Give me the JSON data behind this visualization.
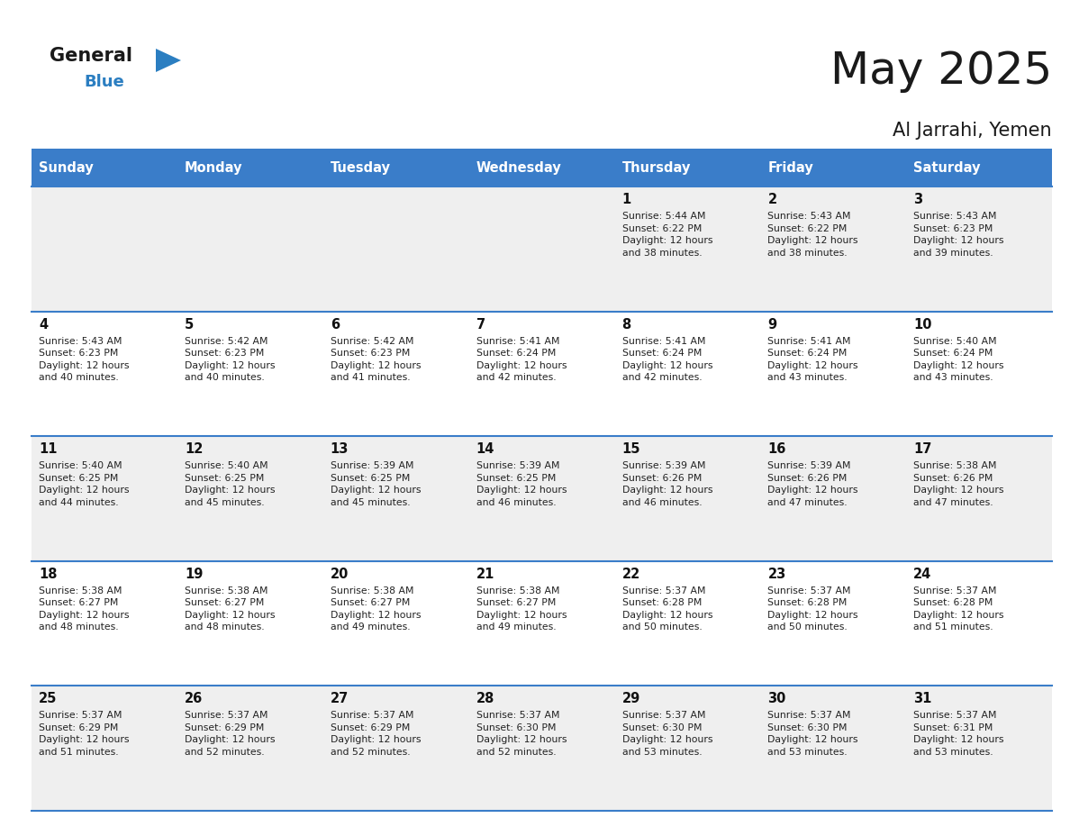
{
  "title": "May 2025",
  "location": "Al Jarrahi, Yemen",
  "header_color": "#3A7DC9",
  "header_text_color": "#FFFFFF",
  "day_names": [
    "Sunday",
    "Monday",
    "Tuesday",
    "Wednesday",
    "Thursday",
    "Friday",
    "Saturday"
  ],
  "alt_row_color": "#EFEFEF",
  "white_color": "#FFFFFF",
  "cell_border_color": "#3A7DC9",
  "text_color": "#222222",
  "day_num_color": "#111111",
  "logo_general_color": "#1A1A1A",
  "logo_blue_color": "#2B7EC1",
  "calendar": [
    [
      null,
      null,
      null,
      null,
      {
        "day": 1,
        "sunrise": "5:44 AM",
        "sunset": "6:22 PM",
        "daylight": "12 hours and 38 minutes."
      },
      {
        "day": 2,
        "sunrise": "5:43 AM",
        "sunset": "6:22 PM",
        "daylight": "12 hours and 38 minutes."
      },
      {
        "day": 3,
        "sunrise": "5:43 AM",
        "sunset": "6:23 PM",
        "daylight": "12 hours and 39 minutes."
      }
    ],
    [
      {
        "day": 4,
        "sunrise": "5:43 AM",
        "sunset": "6:23 PM",
        "daylight": "12 hours and 40 minutes."
      },
      {
        "day": 5,
        "sunrise": "5:42 AM",
        "sunset": "6:23 PM",
        "daylight": "12 hours and 40 minutes."
      },
      {
        "day": 6,
        "sunrise": "5:42 AM",
        "sunset": "6:23 PM",
        "daylight": "12 hours and 41 minutes."
      },
      {
        "day": 7,
        "sunrise": "5:41 AM",
        "sunset": "6:24 PM",
        "daylight": "12 hours and 42 minutes."
      },
      {
        "day": 8,
        "sunrise": "5:41 AM",
        "sunset": "6:24 PM",
        "daylight": "12 hours and 42 minutes."
      },
      {
        "day": 9,
        "sunrise": "5:41 AM",
        "sunset": "6:24 PM",
        "daylight": "12 hours and 43 minutes."
      },
      {
        "day": 10,
        "sunrise": "5:40 AM",
        "sunset": "6:24 PM",
        "daylight": "12 hours and 43 minutes."
      }
    ],
    [
      {
        "day": 11,
        "sunrise": "5:40 AM",
        "sunset": "6:25 PM",
        "daylight": "12 hours and 44 minutes."
      },
      {
        "day": 12,
        "sunrise": "5:40 AM",
        "sunset": "6:25 PM",
        "daylight": "12 hours and 45 minutes."
      },
      {
        "day": 13,
        "sunrise": "5:39 AM",
        "sunset": "6:25 PM",
        "daylight": "12 hours and 45 minutes."
      },
      {
        "day": 14,
        "sunrise": "5:39 AM",
        "sunset": "6:25 PM",
        "daylight": "12 hours and 46 minutes."
      },
      {
        "day": 15,
        "sunrise": "5:39 AM",
        "sunset": "6:26 PM",
        "daylight": "12 hours and 46 minutes."
      },
      {
        "day": 16,
        "sunrise": "5:39 AM",
        "sunset": "6:26 PM",
        "daylight": "12 hours and 47 minutes."
      },
      {
        "day": 17,
        "sunrise": "5:38 AM",
        "sunset": "6:26 PM",
        "daylight": "12 hours and 47 minutes."
      }
    ],
    [
      {
        "day": 18,
        "sunrise": "5:38 AM",
        "sunset": "6:27 PM",
        "daylight": "12 hours and 48 minutes."
      },
      {
        "day": 19,
        "sunrise": "5:38 AM",
        "sunset": "6:27 PM",
        "daylight": "12 hours and 48 minutes."
      },
      {
        "day": 20,
        "sunrise": "5:38 AM",
        "sunset": "6:27 PM",
        "daylight": "12 hours and 49 minutes."
      },
      {
        "day": 21,
        "sunrise": "5:38 AM",
        "sunset": "6:27 PM",
        "daylight": "12 hours and 49 minutes."
      },
      {
        "day": 22,
        "sunrise": "5:37 AM",
        "sunset": "6:28 PM",
        "daylight": "12 hours and 50 minutes."
      },
      {
        "day": 23,
        "sunrise": "5:37 AM",
        "sunset": "6:28 PM",
        "daylight": "12 hours and 50 minutes."
      },
      {
        "day": 24,
        "sunrise": "5:37 AM",
        "sunset": "6:28 PM",
        "daylight": "12 hours and 51 minutes."
      }
    ],
    [
      {
        "day": 25,
        "sunrise": "5:37 AM",
        "sunset": "6:29 PM",
        "daylight": "12 hours and 51 minutes."
      },
      {
        "day": 26,
        "sunrise": "5:37 AM",
        "sunset": "6:29 PM",
        "daylight": "12 hours and 52 minutes."
      },
      {
        "day": 27,
        "sunrise": "5:37 AM",
        "sunset": "6:29 PM",
        "daylight": "12 hours and 52 minutes."
      },
      {
        "day": 28,
        "sunrise": "5:37 AM",
        "sunset": "6:30 PM",
        "daylight": "12 hours and 52 minutes."
      },
      {
        "day": 29,
        "sunrise": "5:37 AM",
        "sunset": "6:30 PM",
        "daylight": "12 hours and 53 minutes."
      },
      {
        "day": 30,
        "sunrise": "5:37 AM",
        "sunset": "6:30 PM",
        "daylight": "12 hours and 53 minutes."
      },
      {
        "day": 31,
        "sunrise": "5:37 AM",
        "sunset": "6:31 PM",
        "daylight": "12 hours and 53 minutes."
      }
    ]
  ]
}
